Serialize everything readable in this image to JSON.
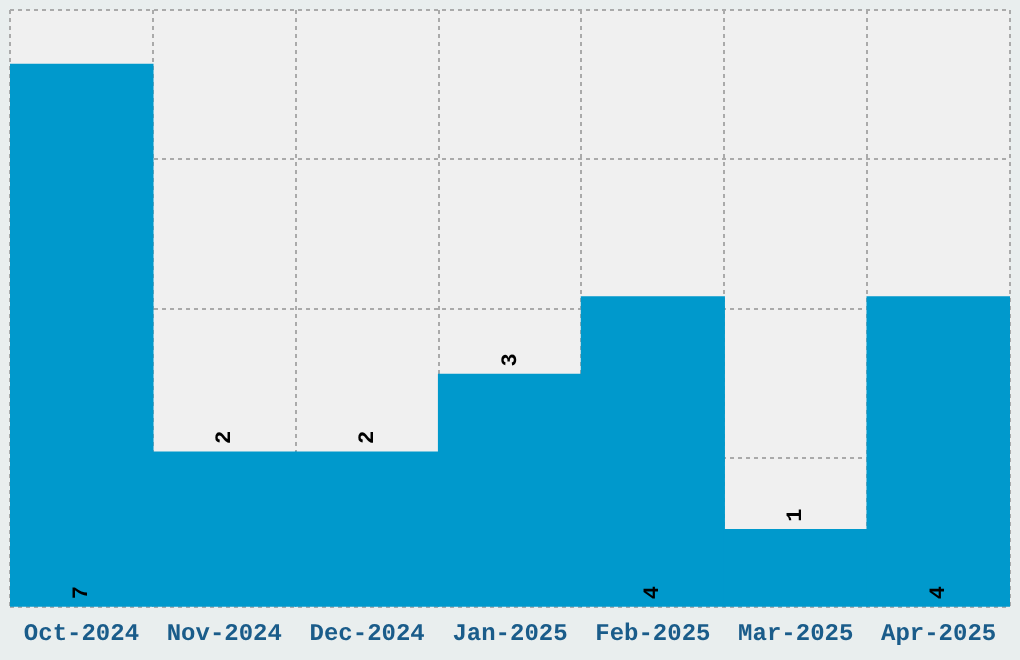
{
  "chart_data": {
    "type": "bar",
    "categories": [
      "Oct-2024",
      "Nov-2024",
      "Dec-2024",
      "Jan-2025",
      "Feb-2025",
      "Mar-2025",
      "Apr-2025"
    ],
    "values": [
      7,
      2,
      2,
      3,
      4,
      1,
      4
    ],
    "color": "#0099cc",
    "ylim": [
      0,
      7.7
    ],
    "yticks": [
      {
        "value": 0,
        "label": null
      },
      {
        "value": 1.925,
        "label": null
      },
      {
        "value": 3.85,
        "label": null
      },
      {
        "value": 5.775,
        "label": null
      },
      {
        "value": 7.7,
        "label": null
      }
    ],
    "tick_labels": "x",
    "data_labels": true,
    "grid": true,
    "legend": false
  }
}
